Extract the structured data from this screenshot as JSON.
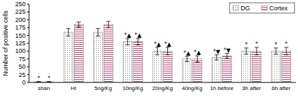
{
  "chart_data": {
    "type": "bar",
    "y_label": "Number of positive cells",
    "categories": [
      "shan",
      "HI",
      "5ng/Kg",
      "10ng/Kg",
      "20ng/Kg",
      "40ng/Kg",
      "1h before",
      "3h after",
      "6h after"
    ],
    "series": [
      {
        "name": "DG",
        "color": "#808080",
        "values": [
          2,
          160,
          160,
          130,
          100,
          75,
          80,
          100,
          100
        ],
        "errors": [
          1,
          12,
          12,
          10,
          12,
          8,
          8,
          10,
          10
        ],
        "annotations": [
          "*",
          null,
          null,
          "*▲",
          "*▲",
          "*▲",
          "*▼",
          "*",
          "*"
        ]
      },
      {
        "name": "Cortex",
        "color": "#b04070",
        "values": [
          2,
          185,
          185,
          130,
          100,
          75,
          85,
          100,
          100
        ],
        "errors": [
          1,
          8,
          10,
          10,
          12,
          10,
          8,
          12,
          12
        ],
        "annotations": [
          "*",
          null,
          null,
          "*▲",
          "*▲",
          "*▲",
          "*▼",
          "*",
          "*"
        ]
      }
    ],
    "ylim": [
      0,
      250
    ],
    "yticks": [
      0,
      25,
      50,
      75,
      100,
      125,
      150,
      175,
      200,
      225,
      250
    ],
    "grid": false,
    "legend": "upper right"
  }
}
